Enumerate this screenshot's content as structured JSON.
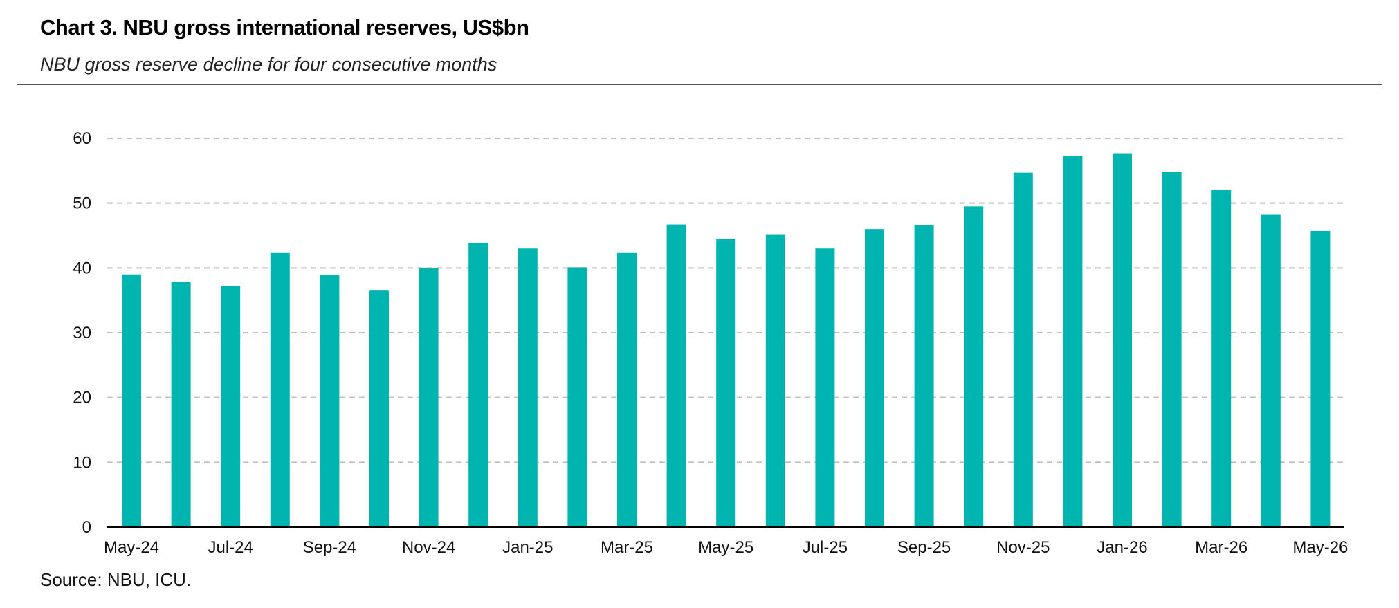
{
  "header": {
    "title": "Chart 3. NBU gross international reserves, US$bn",
    "subtitle": "NBU gross reserve decline for four consecutive months"
  },
  "footer": {
    "source": "Source: NBU, ICU."
  },
  "colors": {
    "bar": "#00B5B0",
    "grid": "#BFBFBF",
    "axis": "#000000"
  },
  "chart_data": {
    "type": "bar",
    "categories": [
      "May-24",
      "Jun-24",
      "Jul-24",
      "Aug-24",
      "Sep-24",
      "Oct-24",
      "Nov-24",
      "Dec-24",
      "Jan-25",
      "Feb-25",
      "Mar-25",
      "Apr-25",
      "May-25",
      "Jun-25",
      "Jul-25",
      "Aug-25",
      "Sep-25",
      "Oct-25",
      "Nov-25",
      "Dec-25",
      "Jan-26",
      "Feb-26",
      "Mar-26",
      "Apr-26",
      "May-26"
    ],
    "values": [
      39.0,
      37.9,
      37.2,
      42.3,
      38.9,
      36.6,
      40.0,
      43.8,
      43.0,
      40.1,
      42.3,
      46.7,
      44.5,
      45.1,
      43.0,
      46.0,
      46.6,
      49.5,
      54.7,
      57.3,
      57.7,
      54.8,
      52.0,
      48.2,
      45.7
    ],
    "x_tick_labels": [
      "May-24",
      "Jul-24",
      "Sep-24",
      "Nov-24",
      "Jan-25",
      "Mar-25",
      "May-25",
      "Jul-25",
      "Sep-25",
      "Nov-25",
      "Jan-26",
      "Mar-26",
      "May-26"
    ],
    "y_ticks": [
      0,
      10,
      20,
      30,
      40,
      50,
      60
    ],
    "ylim": [
      0,
      60
    ],
    "xlabel": "",
    "ylabel": "",
    "grid": true,
    "grid_style": "dashed",
    "legend": "none"
  }
}
